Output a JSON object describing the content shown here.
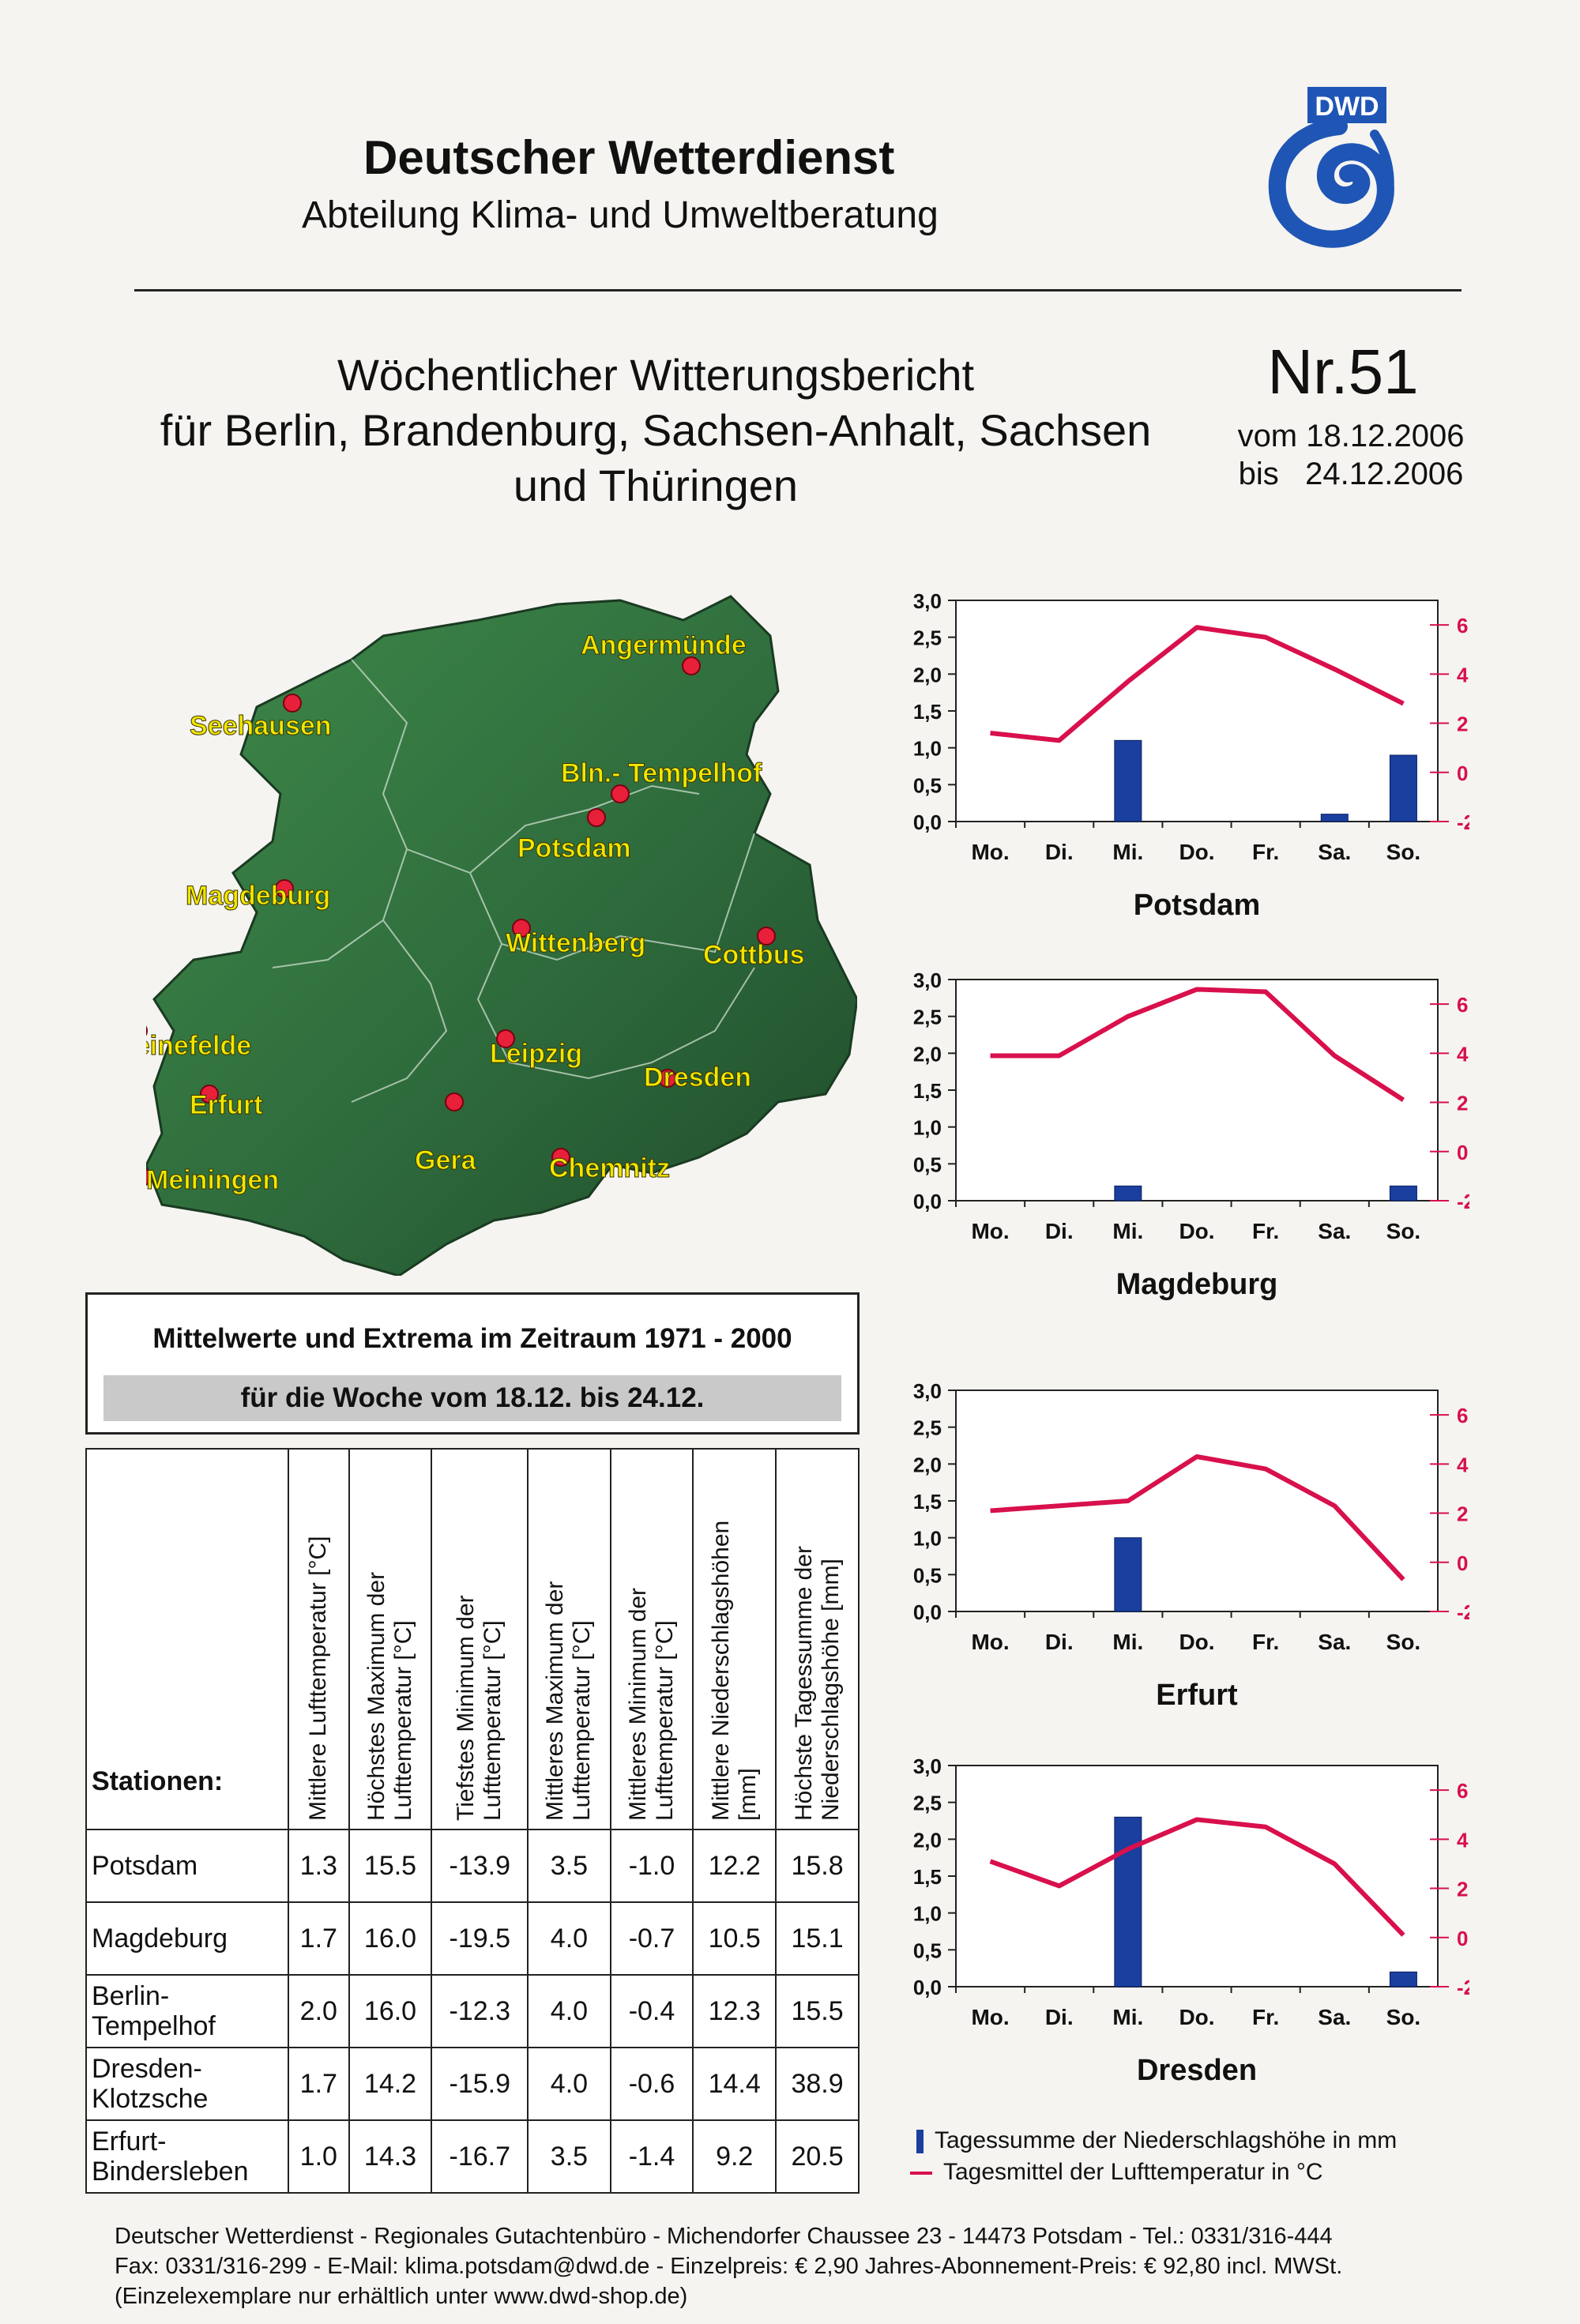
{
  "header": {
    "org": "Deutscher Wetterdienst",
    "department": "Abteilung Klima- und Umweltberatung",
    "logo_text": "DWD",
    "colors": {
      "logo_blue": "#1f55b5",
      "temperature_line": "#d8104c",
      "precip_bar": "#1a3f9e",
      "map_green": "#2e6b3c"
    }
  },
  "report": {
    "title_line1": "Wöchentlicher Witterungsbericht",
    "title_line2": "für Berlin, Brandenburg, Sachsen-Anhalt, Sachsen",
    "title_line3": "und Thüringen",
    "number": "Nr.51",
    "from": "vom 18.12.2006",
    "to": "bis   24.12.2006"
  },
  "map": {
    "stations": [
      {
        "label": "Angermünde"
      },
      {
        "label": "Seehausen"
      },
      {
        "label": "Bln.- Tempelhof"
      },
      {
        "label": "Potsdam"
      },
      {
        "label": "Magdeburg"
      },
      {
        "label": "Wittenberg"
      },
      {
        "label": "Cottbus"
      },
      {
        "label": "Leinefelde"
      },
      {
        "label": "Leipzig"
      },
      {
        "label": "Dresden"
      },
      {
        "label": "Erfurt"
      },
      {
        "label": "Gera"
      },
      {
        "label": "Chemnitz"
      },
      {
        "label": "Meiningen"
      }
    ]
  },
  "climatology": {
    "title": "Mittelwerte und Extrema im Zeitraum 1971 - 2000",
    "subtitle": "für die Woche vom 18.12. bis 24.12.",
    "stations_header": "Stationen:",
    "columns": [
      "Mittlere Lufttemperatur [°C]",
      "Höchstes Maximum der Lufttemperatur [°C]",
      "Tiefstes Minimum der Lufttemperatur [°C]",
      "Mittleres Maximum der Lufttemperatur [°C]",
      "Mittleres Minimum der Lufttemperatur [°C]",
      "Mittlere Niederschlagshöhen [mm]",
      "Höchste Tagessumme der Niederschlagshöhe [mm]"
    ],
    "rows": [
      {
        "name": "Potsdam",
        "values": [
          "1.3",
          "15.5",
          "-13.9",
          "3.5",
          "-1.0",
          "12.2",
          "15.8"
        ]
      },
      {
        "name": "Magdeburg",
        "values": [
          "1.7",
          "16.0",
          "-19.5",
          "4.0",
          "-0.7",
          "10.5",
          "15.1"
        ]
      },
      {
        "name": "Berlin-\nTempelhof",
        "values": [
          "2.0",
          "16.0",
          "-12.3",
          "4.0",
          "-0.4",
          "12.3",
          "15.5"
        ]
      },
      {
        "name": "Dresden-\nKlotzsche",
        "values": [
          "1.7",
          "14.2",
          "-15.9",
          "4.0",
          "-0.6",
          "14.4",
          "38.9"
        ]
      },
      {
        "name": "Erfurt-\nBindersleben",
        "values": [
          "1.0",
          "14.3",
          "-16.7",
          "3.5",
          "-1.4",
          "9.2",
          "20.5"
        ]
      }
    ]
  },
  "chart_data": [
    {
      "type": "bar+line",
      "title": "Potsdam",
      "categories": [
        "Mo.",
        "Di.",
        "Mi.",
        "Do.",
        "Fr.",
        "Sa.",
        "So."
      ],
      "precip_ticks": [
        "3,0",
        "2,5",
        "2,0",
        "1,5",
        "1,0",
        "0,5",
        "0,0"
      ],
      "temp_ticks": [
        "6,0",
        "4,0",
        "2,0",
        "0,0",
        "-2,0"
      ],
      "precip_ylim": [
        0,
        3
      ],
      "temp_ylim": [
        -2,
        7
      ],
      "series": [
        {
          "name": "Tagessumme der Niederschlagshöhe in mm",
          "kind": "bar",
          "values": [
            0,
            0,
            1.1,
            0,
            0,
            0.1,
            0.9
          ]
        },
        {
          "name": "Tagesmittel der Lufttemperatur in °C",
          "kind": "line",
          "values": [
            1.6,
            1.3,
            3.7,
            5.9,
            5.5,
            4.2,
            2.8
          ]
        }
      ]
    },
    {
      "type": "bar+line",
      "title": "Magdeburg",
      "categories": [
        "Mo.",
        "Di.",
        "Mi.",
        "Do.",
        "Fr.",
        "Sa.",
        "So."
      ],
      "precip_ticks": [
        "3,0",
        "2,5",
        "2,0",
        "1,5",
        "1,0",
        "0,5",
        "0,0"
      ],
      "temp_ticks": [
        "6,0",
        "4,0",
        "2,0",
        "0,0",
        "-2,0"
      ],
      "precip_ylim": [
        0,
        3
      ],
      "temp_ylim": [
        -2,
        7
      ],
      "series": [
        {
          "name": "Tagessumme der Niederschlagshöhe in mm",
          "kind": "bar",
          "values": [
            0,
            0,
            0.2,
            0,
            0,
            0,
            0.2
          ]
        },
        {
          "name": "Tagesmittel der Lufttemperatur in °C",
          "kind": "line",
          "values": [
            3.9,
            3.9,
            5.5,
            6.6,
            6.5,
            3.9,
            2.1
          ]
        }
      ]
    },
    {
      "type": "bar+line",
      "title": "Erfurt",
      "categories": [
        "Mo.",
        "Di.",
        "Mi.",
        "Do.",
        "Fr.",
        "Sa.",
        "So."
      ],
      "precip_ticks": [
        "3,0",
        "2,5",
        "2,0",
        "1,5",
        "1,0",
        "0,5",
        "0,0"
      ],
      "temp_ticks": [
        "6,0",
        "4,0",
        "2,0",
        "0,0",
        "-2,0"
      ],
      "precip_ylim": [
        0,
        3
      ],
      "temp_ylim": [
        -2,
        7
      ],
      "series": [
        {
          "name": "Tagessumme der Niederschlagshöhe in mm",
          "kind": "bar",
          "values": [
            0,
            0,
            1.0,
            0,
            0,
            0,
            0
          ]
        },
        {
          "name": "Tagesmittel der Lufttemperatur in °C",
          "kind": "line",
          "values": [
            2.1,
            2.3,
            2.5,
            4.3,
            3.8,
            2.3,
            -0.7
          ]
        }
      ]
    },
    {
      "type": "bar+line",
      "title": "Dresden",
      "categories": [
        "Mo.",
        "Di.",
        "Mi.",
        "Do.",
        "Fr.",
        "Sa.",
        "So."
      ],
      "precip_ticks": [
        "3,0",
        "2,5",
        "2,0",
        "1,5",
        "1,0",
        "0,5",
        "0,0"
      ],
      "temp_ticks": [
        "6,0",
        "4,0",
        "2,0",
        "0,0",
        "-2,0"
      ],
      "precip_ylim": [
        0,
        3
      ],
      "temp_ylim": [
        -2,
        7
      ],
      "series": [
        {
          "name": "Tagessumme der Niederschlagshöhe in mm",
          "kind": "bar",
          "values": [
            0,
            0,
            2.3,
            0,
            0,
            0,
            0.2
          ]
        },
        {
          "name": "Tagesmittel der Lufttemperatur in °C",
          "kind": "line",
          "values": [
            3.1,
            2.1,
            3.6,
            4.8,
            4.5,
            3.0,
            0.1
          ]
        }
      ]
    }
  ],
  "legend": {
    "precip": "Tagessumme der Niederschlagshöhe in mm",
    "temp": "Tagesmittel der Lufttemperatur in °C"
  },
  "footer": {
    "line1": "Deutscher Wetterdienst - Regionales Gutachtenbüro - Michendorfer Chaussee 23 - 14473 Potsdam  -  Tel.: 0331/316-444",
    "line2": "Fax: 0331/316-299  -  E-Mail: klima.potsdam@dwd.de  -   Einzelpreis: € 2,90 Jahres-Abonnement-Preis: € 92,80 incl. MWSt.",
    "line3": "(Einzelexemplare nur erhältlich unter www.dwd-shop.de)"
  }
}
